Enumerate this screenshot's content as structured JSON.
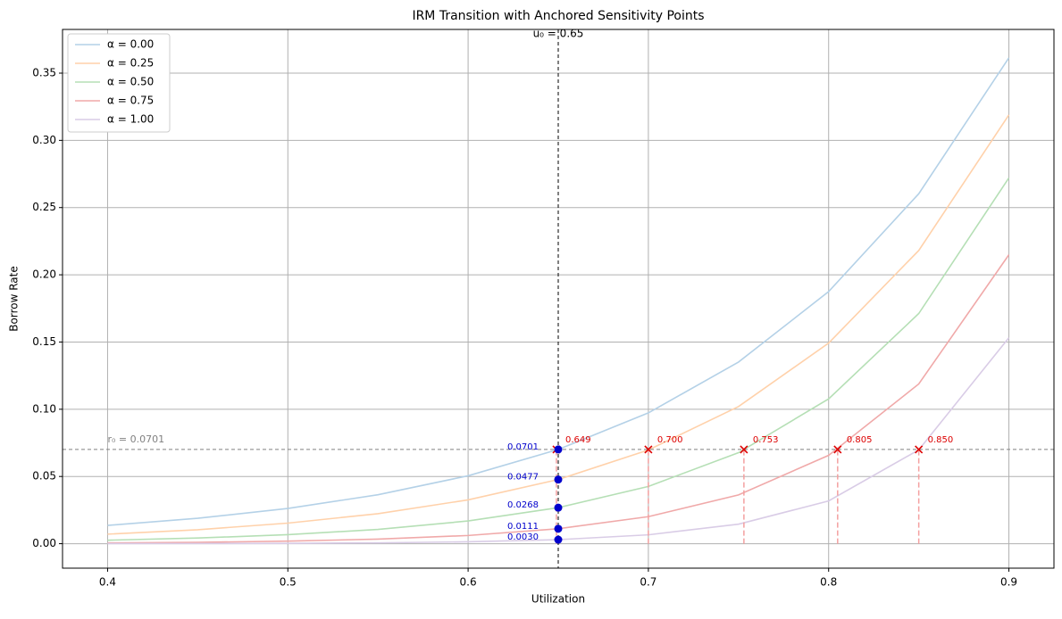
{
  "chart_data": {
    "type": "line",
    "title": "IRM Transition with Anchored Sensitivity Points",
    "xlabel": "Utilization",
    "ylabel": "Borrow Rate",
    "x": [
      0.4,
      0.45,
      0.5,
      0.55,
      0.6,
      0.65,
      0.7,
      0.75,
      0.8,
      0.85,
      0.9
    ],
    "series": [
      {
        "name": "α = 0.00",
        "color": "#b4d1e7",
        "values": [
          0.0136,
          0.0189,
          0.0262,
          0.0364,
          0.0505,
          0.0701,
          0.0973,
          0.1351,
          0.1875,
          0.2603,
          0.3614
        ]
      },
      {
        "name": "α = 0.25",
        "color": "#ffd1aa",
        "values": [
          0.0071,
          0.0104,
          0.0153,
          0.0223,
          0.0326,
          0.0477,
          0.0697,
          0.102,
          0.1492,
          0.2181,
          0.3189
        ]
      },
      {
        "name": "α = 0.50",
        "color": "#b5dfb5",
        "values": [
          0.0026,
          0.0042,
          0.0067,
          0.0106,
          0.0169,
          0.0268,
          0.0426,
          0.0677,
          0.1077,
          0.1712,
          0.2721
        ]
      },
      {
        "name": "α = 0.75",
        "color": "#f0a9a9",
        "values": [
          0.00057,
          0.001,
          0.0019,
          0.0034,
          0.0061,
          0.0111,
          0.0201,
          0.0363,
          0.0657,
          0.1188,
          0.2149
        ]
      },
      {
        "name": "α = 1.00",
        "color": "#d9cce6",
        "values": [
          6e-05,
          0.00013,
          0.00028,
          0.00062,
          0.0014,
          0.003,
          0.0066,
          0.0145,
          0.0318,
          0.0698,
          0.1532
        ]
      }
    ],
    "xlim": [
      0.375,
      0.925
    ],
    "ylim": [
      -0.0182,
      0.3825
    ],
    "xticks": [
      0.4,
      0.5,
      0.6,
      0.7,
      0.8,
      0.9
    ],
    "yticks": [
      {
        "value": 0,
        "label": "0.00"
      },
      {
        "value": 0.05,
        "label": "0.05"
      },
      {
        "value": 0.1,
        "label": "0.10"
      },
      {
        "value": 0.15,
        "label": "0.15"
      },
      {
        "value": 0.2,
        "label": "0.20"
      },
      {
        "value": 0.25,
        "label": "0.25"
      },
      {
        "value": 0.3,
        "label": "0.30"
      },
      {
        "value": 0.35,
        "label": "0.35"
      }
    ],
    "grid": true,
    "legend": "upper left",
    "vline": {
      "value": 0.65,
      "label": "u₀ = 0.65",
      "color": "#000000"
    },
    "hline": {
      "value": 0.0701,
      "label": "r₀ = 0.0701",
      "color": "#808080"
    },
    "anchor_points": {
      "color": "#0000cc",
      "values": [
        0.0701,
        0.0477,
        0.0268,
        0.0111,
        0.003
      ],
      "value_labels": [
        "0.0701",
        "0.0477",
        "0.0268",
        "0.0111",
        "0.0030"
      ]
    },
    "crossings": {
      "color": "#dd0000",
      "x": [
        0.649,
        0.7,
        0.753,
        0.805,
        0.85
      ],
      "value_labels": [
        "0.649",
        "0.700",
        "0.753",
        "0.805",
        "0.850"
      ]
    }
  }
}
